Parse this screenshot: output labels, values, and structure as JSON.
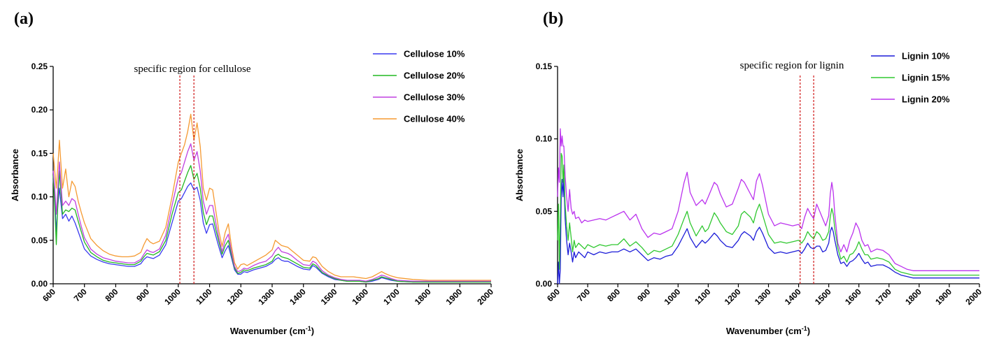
{
  "chart_data": [
    {
      "type": "line",
      "panel_label": "(a)",
      "annotation": "specific region for cellulose",
      "region": [
        1005,
        1050
      ],
      "xlabel": "Wavenumber (cm",
      "xlabel_sup": "-1",
      "xlabel_end": ")",
      "ylabel": "Absorbance",
      "xlim": [
        600,
        2000
      ],
      "ylim": [
        0,
        0.25
      ],
      "xticks": [
        600,
        700,
        800,
        900,
        1000,
        1100,
        1200,
        1300,
        1400,
        1500,
        1600,
        1700,
        1800,
        1900,
        2000
      ],
      "yticks": [
        0.0,
        0.05,
        0.1,
        0.15,
        0.2,
        0.25
      ],
      "ytick_labels": [
        "0.00",
        "0.05",
        "0.10",
        "0.15",
        "0.20",
        "0.25"
      ],
      "grid": false,
      "legend": "top-right",
      "x": [
        600,
        605,
        610,
        615,
        620,
        630,
        640,
        650,
        660,
        670,
        680,
        690,
        700,
        720,
        740,
        760,
        780,
        800,
        820,
        840,
        860,
        880,
        890,
        900,
        910,
        920,
        940,
        960,
        980,
        1000,
        1010,
        1020,
        1030,
        1040,
        1050,
        1060,
        1070,
        1080,
        1090,
        1100,
        1110,
        1120,
        1130,
        1140,
        1150,
        1160,
        1170,
        1180,
        1190,
        1200,
        1210,
        1220,
        1240,
        1260,
        1280,
        1300,
        1310,
        1320,
        1330,
        1340,
        1350,
        1360,
        1380,
        1400,
        1420,
        1430,
        1440,
        1460,
        1480,
        1500,
        1520,
        1540,
        1560,
        1580,
        1600,
        1620,
        1640,
        1650,
        1660,
        1680,
        1700,
        1750,
        1800,
        1850,
        1900,
        1950,
        2000
      ],
      "series": [
        {
          "name": "Cellulose 10%",
          "color": "#3a3af0",
          "values": [
            0.12,
            0.1,
            0.06,
            0.09,
            0.11,
            0.075,
            0.08,
            0.072,
            0.078,
            0.07,
            0.06,
            0.05,
            0.04,
            0.032,
            0.028,
            0.025,
            0.023,
            0.022,
            0.021,
            0.02,
            0.02,
            0.023,
            0.028,
            0.031,
            0.03,
            0.029,
            0.033,
            0.045,
            0.07,
            0.095,
            0.098,
            0.105,
            0.112,
            0.116,
            0.108,
            0.111,
            0.096,
            0.07,
            0.058,
            0.068,
            0.069,
            0.055,
            0.042,
            0.03,
            0.038,
            0.044,
            0.03,
            0.016,
            0.011,
            0.011,
            0.014,
            0.013,
            0.016,
            0.018,
            0.02,
            0.024,
            0.028,
            0.03,
            0.027,
            0.026,
            0.026,
            0.024,
            0.02,
            0.017,
            0.016,
            0.021,
            0.019,
            0.012,
            0.008,
            0.005,
            0.004,
            0.003,
            0.003,
            0.003,
            0.002,
            0.003,
            0.005,
            0.007,
            0.006,
            0.004,
            0.003,
            0.002,
            0.002,
            0.002,
            0.002,
            0.002,
            0.002
          ]
        },
        {
          "name": "Cellulose 20%",
          "color": "#22b822",
          "values": [
            0.125,
            0.09,
            0.045,
            0.095,
            0.13,
            0.08,
            0.085,
            0.083,
            0.087,
            0.085,
            0.072,
            0.06,
            0.048,
            0.036,
            0.031,
            0.027,
            0.025,
            0.024,
            0.023,
            0.022,
            0.022,
            0.026,
            0.031,
            0.035,
            0.034,
            0.033,
            0.037,
            0.05,
            0.08,
            0.105,
            0.108,
            0.118,
            0.128,
            0.136,
            0.12,
            0.127,
            0.11,
            0.082,
            0.068,
            0.078,
            0.078,
            0.062,
            0.048,
            0.034,
            0.044,
            0.05,
            0.033,
            0.018,
            0.012,
            0.013,
            0.016,
            0.015,
            0.018,
            0.02,
            0.022,
            0.026,
            0.032,
            0.034,
            0.031,
            0.03,
            0.029,
            0.027,
            0.023,
            0.019,
            0.018,
            0.023,
            0.021,
            0.013,
            0.009,
            0.006,
            0.004,
            0.003,
            0.003,
            0.003,
            0.002,
            0.004,
            0.006,
            0.008,
            0.007,
            0.005,
            0.003,
            0.002,
            0.002,
            0.002,
            0.002,
            0.002,
            0.002
          ]
        },
        {
          "name": "Cellulose 30%",
          "color": "#c040e0",
          "values": [
            0.13,
            0.11,
            0.08,
            0.11,
            0.14,
            0.09,
            0.095,
            0.09,
            0.098,
            0.095,
            0.08,
            0.066,
            0.053,
            0.04,
            0.034,
            0.03,
            0.028,
            0.026,
            0.025,
            0.024,
            0.024,
            0.028,
            0.034,
            0.039,
            0.037,
            0.036,
            0.04,
            0.056,
            0.09,
            0.122,
            0.128,
            0.14,
            0.152,
            0.161,
            0.142,
            0.152,
            0.13,
            0.095,
            0.08,
            0.09,
            0.09,
            0.07,
            0.052,
            0.037,
            0.05,
            0.057,
            0.037,
            0.02,
            0.014,
            0.015,
            0.018,
            0.017,
            0.021,
            0.024,
            0.026,
            0.032,
            0.038,
            0.042,
            0.037,
            0.036,
            0.035,
            0.033,
            0.027,
            0.022,
            0.021,
            0.026,
            0.024,
            0.015,
            0.01,
            0.007,
            0.005,
            0.004,
            0.004,
            0.004,
            0.003,
            0.005,
            0.008,
            0.01,
            0.009,
            0.006,
            0.004,
            0.003,
            0.003,
            0.003,
            0.003,
            0.003,
            0.003
          ]
        },
        {
          "name": "Cellulose 40%",
          "color": "#f59a32",
          "values": [
            0.15,
            0.13,
            0.11,
            0.135,
            0.165,
            0.11,
            0.132,
            0.1,
            0.118,
            0.112,
            0.095,
            0.082,
            0.07,
            0.052,
            0.044,
            0.038,
            0.034,
            0.032,
            0.031,
            0.031,
            0.032,
            0.036,
            0.045,
            0.052,
            0.048,
            0.046,
            0.049,
            0.065,
            0.1,
            0.14,
            0.15,
            0.16,
            0.175,
            0.195,
            0.165,
            0.185,
            0.158,
            0.11,
            0.096,
            0.11,
            0.108,
            0.084,
            0.06,
            0.043,
            0.059,
            0.069,
            0.043,
            0.024,
            0.017,
            0.022,
            0.023,
            0.021,
            0.025,
            0.029,
            0.033,
            0.039,
            0.05,
            0.047,
            0.044,
            0.043,
            0.042,
            0.039,
            0.033,
            0.027,
            0.026,
            0.031,
            0.03,
            0.02,
            0.014,
            0.01,
            0.008,
            0.008,
            0.008,
            0.007,
            0.006,
            0.008,
            0.012,
            0.014,
            0.012,
            0.009,
            0.007,
            0.005,
            0.004,
            0.004,
            0.004,
            0.004,
            0.004
          ]
        }
      ]
    },
    {
      "type": "line",
      "panel_label": "(b)",
      "annotation": "specific region for lignin",
      "region": [
        1405,
        1450
      ],
      "xlabel": "Wavenumber (cm",
      "xlabel_sup": "-1",
      "xlabel_end": ")",
      "ylabel": "Absorbance",
      "xlim": [
        600,
        2000
      ],
      "ylim": [
        0,
        0.15
      ],
      "xticks": [
        600,
        700,
        800,
        900,
        1000,
        1100,
        1200,
        1300,
        1400,
        1500,
        1600,
        1700,
        1800,
        1900,
        2000
      ],
      "yticks": [
        0.0,
        0.05,
        0.1,
        0.15
      ],
      "ytick_labels": [
        "0.00",
        "0.05",
        "0.10",
        "0.15"
      ],
      "grid": false,
      "legend": "top-right",
      "x": [
        600,
        603,
        606,
        609,
        612,
        615,
        618,
        621,
        625,
        630,
        635,
        640,
        645,
        650,
        655,
        660,
        670,
        680,
        690,
        700,
        720,
        740,
        760,
        780,
        800,
        820,
        840,
        860,
        880,
        900,
        920,
        940,
        960,
        980,
        1000,
        1020,
        1030,
        1040,
        1060,
        1080,
        1090,
        1100,
        1120,
        1130,
        1140,
        1160,
        1180,
        1200,
        1210,
        1220,
        1240,
        1250,
        1260,
        1270,
        1280,
        1300,
        1320,
        1340,
        1360,
        1380,
        1400,
        1410,
        1420,
        1430,
        1440,
        1450,
        1460,
        1470,
        1480,
        1490,
        1500,
        1505,
        1510,
        1515,
        1520,
        1530,
        1540,
        1550,
        1560,
        1570,
        1580,
        1590,
        1600,
        1610,
        1620,
        1630,
        1640,
        1660,
        1680,
        1700,
        1720,
        1740,
        1760,
        1780,
        1800,
        1850,
        1900,
        1950,
        2000
      ],
      "series": [
        {
          "name": "Lignin 10%",
          "color": "#1c1cd8",
          "values": [
            0.0,
            0.015,
            0.0,
            0.01,
            0.06,
            0.072,
            0.06,
            0.073,
            0.045,
            0.03,
            0.02,
            0.028,
            0.022,
            0.015,
            0.022,
            0.018,
            0.022,
            0.02,
            0.018,
            0.022,
            0.02,
            0.022,
            0.021,
            0.022,
            0.022,
            0.024,
            0.022,
            0.024,
            0.02,
            0.016,
            0.018,
            0.017,
            0.019,
            0.02,
            0.026,
            0.034,
            0.038,
            0.032,
            0.025,
            0.03,
            0.028,
            0.03,
            0.035,
            0.033,
            0.03,
            0.026,
            0.025,
            0.03,
            0.034,
            0.036,
            0.033,
            0.03,
            0.036,
            0.039,
            0.035,
            0.025,
            0.021,
            0.022,
            0.021,
            0.022,
            0.023,
            0.021,
            0.024,
            0.028,
            0.025,
            0.024,
            0.026,
            0.026,
            0.022,
            0.023,
            0.028,
            0.036,
            0.039,
            0.036,
            0.03,
            0.02,
            0.014,
            0.015,
            0.012,
            0.015,
            0.016,
            0.018,
            0.021,
            0.017,
            0.014,
            0.015,
            0.012,
            0.013,
            0.013,
            0.011,
            0.008,
            0.006,
            0.005,
            0.004,
            0.004,
            0.004,
            0.004,
            0.004,
            0.004
          ]
        },
        {
          "name": "Lignin 15%",
          "color": "#30c830",
          "values": [
            0.03,
            0.055,
            0.01,
            0.045,
            0.09,
            0.088,
            0.07,
            0.082,
            0.055,
            0.04,
            0.03,
            0.042,
            0.032,
            0.022,
            0.03,
            0.025,
            0.028,
            0.026,
            0.024,
            0.027,
            0.025,
            0.027,
            0.026,
            0.027,
            0.027,
            0.031,
            0.026,
            0.029,
            0.025,
            0.02,
            0.023,
            0.022,
            0.024,
            0.026,
            0.034,
            0.045,
            0.05,
            0.042,
            0.033,
            0.04,
            0.036,
            0.038,
            0.049,
            0.046,
            0.042,
            0.036,
            0.034,
            0.04,
            0.048,
            0.05,
            0.046,
            0.042,
            0.05,
            0.055,
            0.048,
            0.034,
            0.028,
            0.029,
            0.028,
            0.029,
            0.03,
            0.028,
            0.031,
            0.036,
            0.033,
            0.031,
            0.036,
            0.034,
            0.03,
            0.031,
            0.036,
            0.046,
            0.052,
            0.048,
            0.038,
            0.025,
            0.017,
            0.019,
            0.015,
            0.02,
            0.021,
            0.024,
            0.029,
            0.024,
            0.02,
            0.02,
            0.017,
            0.018,
            0.017,
            0.015,
            0.01,
            0.008,
            0.007,
            0.006,
            0.006,
            0.006,
            0.006,
            0.006,
            0.006
          ]
        },
        {
          "name": "Lignin 20%",
          "color": "#bb33ee",
          "values": [
            0.06,
            0.08,
            0.07,
            0.107,
            0.095,
            0.102,
            0.095,
            0.095,
            0.075,
            0.06,
            0.05,
            0.065,
            0.052,
            0.048,
            0.05,
            0.045,
            0.046,
            0.042,
            0.044,
            0.043,
            0.044,
            0.045,
            0.044,
            0.046,
            0.048,
            0.05,
            0.044,
            0.048,
            0.038,
            0.032,
            0.035,
            0.034,
            0.036,
            0.038,
            0.05,
            0.07,
            0.077,
            0.063,
            0.054,
            0.058,
            0.055,
            0.06,
            0.07,
            0.068,
            0.062,
            0.053,
            0.055,
            0.066,
            0.072,
            0.07,
            0.062,
            0.058,
            0.071,
            0.076,
            0.068,
            0.048,
            0.04,
            0.042,
            0.041,
            0.04,
            0.041,
            0.038,
            0.046,
            0.052,
            0.048,
            0.045,
            0.055,
            0.05,
            0.045,
            0.04,
            0.047,
            0.062,
            0.07,
            0.063,
            0.048,
            0.028,
            0.022,
            0.027,
            0.022,
            0.03,
            0.035,
            0.042,
            0.038,
            0.03,
            0.026,
            0.027,
            0.022,
            0.024,
            0.023,
            0.02,
            0.014,
            0.012,
            0.01,
            0.009,
            0.009,
            0.009,
            0.009,
            0.009,
            0.009
          ]
        }
      ]
    }
  ]
}
